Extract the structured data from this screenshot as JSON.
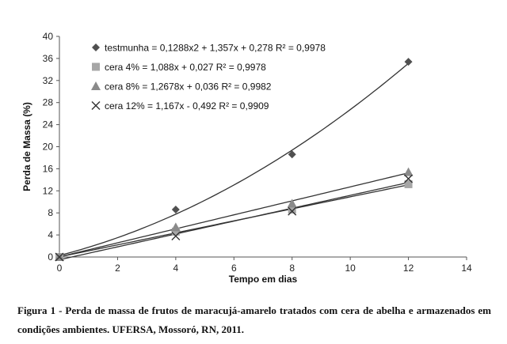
{
  "chart_data": {
    "type": "scatter",
    "xlabel": "Tempo em dias",
    "ylabel": "Perda de Massa (%)",
    "xlim": [
      0,
      14
    ],
    "ylim": [
      0,
      40
    ],
    "x_ticks": [
      0,
      2,
      4,
      6,
      8,
      10,
      12,
      14
    ],
    "y_ticks": [
      0,
      4,
      8,
      12,
      16,
      20,
      24,
      28,
      32,
      36,
      40
    ],
    "grid": false,
    "legend_position": "top-left",
    "series": [
      {
        "name": "testmunha = 0,1288x2 + 1,357x + 0,278 R² = 0,9978",
        "marker": "diamond",
        "color": "#505050",
        "x": [
          0,
          4,
          8,
          12
        ],
        "y": [
          0,
          8.6,
          18.6,
          35.4
        ],
        "fit": {
          "kind": "poly2",
          "coef": [
            0.1288,
            1.357,
            0.278
          ]
        }
      },
      {
        "name": "cera 4% = 1,088x + 0,027 R² = 0,9978",
        "marker": "square",
        "color": "#a6a6a6",
        "x": [
          0,
          4,
          8,
          12
        ],
        "y": [
          0,
          4.6,
          8.6,
          13.2
        ],
        "fit": {
          "kind": "linear",
          "coef": [
            1.088,
            0.027
          ]
        }
      },
      {
        "name": "cera 8% = 1,2678x + 0,036 R² = 0,9982",
        "marker": "triangle",
        "color": "#8a8a8a",
        "x": [
          0,
          4,
          8,
          12
        ],
        "y": [
          0,
          5.4,
          9.7,
          15.4
        ],
        "fit": {
          "kind": "linear",
          "coef": [
            1.2678,
            0.036
          ]
        }
      },
      {
        "name": "cera 12% = 1,167x - 0,492 R² = 0,9909",
        "marker": "x",
        "color": "#333333",
        "x": [
          0,
          4,
          8,
          12
        ],
        "y": [
          0,
          3.8,
          8.3,
          14.2
        ],
        "fit": {
          "kind": "linear",
          "coef": [
            1.167,
            -0.492
          ]
        }
      }
    ]
  },
  "caption": {
    "line1": "Figura 1 - Perda de massa de frutos de maracujá-amarelo tratados com cera de abelha e",
    "line2": "armazenados em condições ambientes. UFERSA, Mossoró, RN, 2011."
  }
}
